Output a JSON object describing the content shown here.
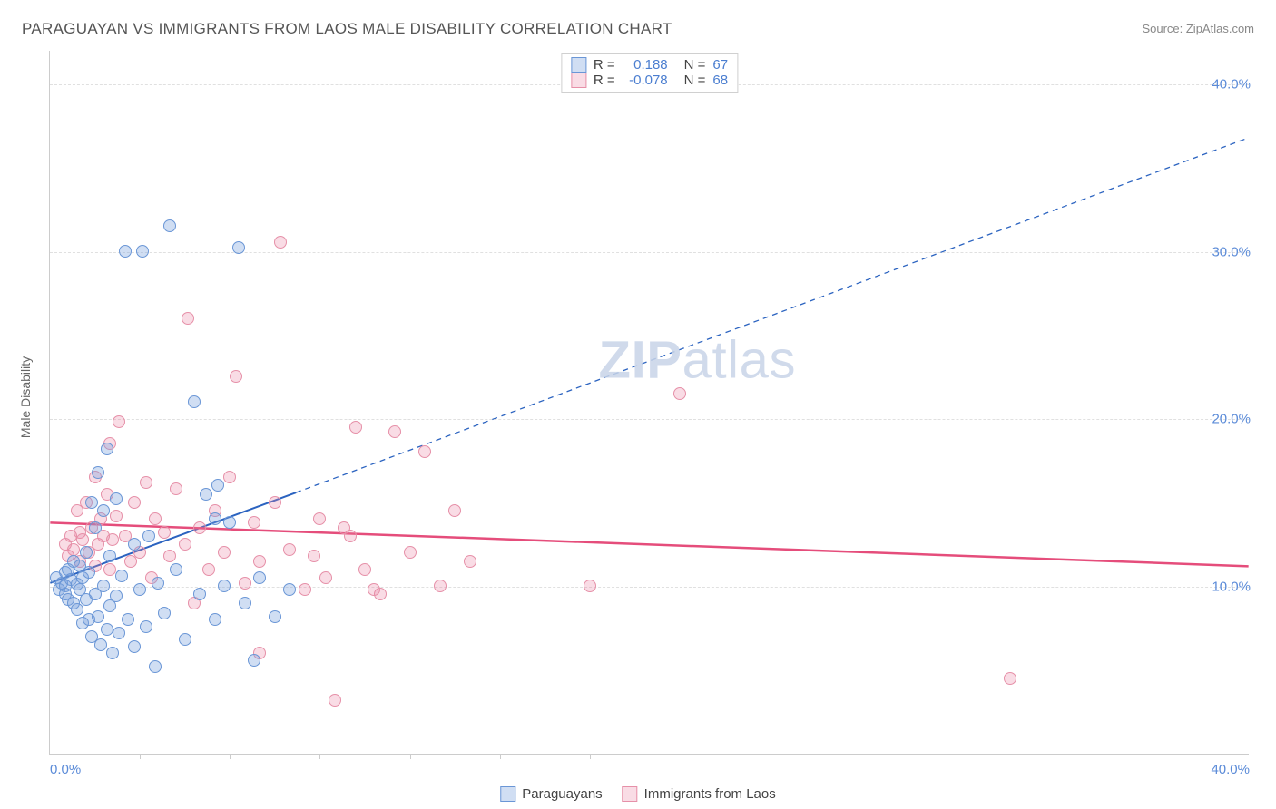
{
  "title": "PARAGUAYAN VS IMMIGRANTS FROM LAOS MALE DISABILITY CORRELATION CHART",
  "source": "Source: ZipAtlas.com",
  "ylabel": "Male Disability",
  "watermark_a": "ZIP",
  "watermark_b": "atlas",
  "chart": {
    "type": "scatter",
    "background_color": "#ffffff",
    "grid_color": "#e0e0e0",
    "axis_color": "#cccccc",
    "xlim": [
      0,
      40
    ],
    "ylim": [
      0,
      42
    ],
    "xtick_labels": [
      "0.0%",
      "40.0%"
    ],
    "xtick_pos": [
      0,
      40
    ],
    "ytick_labels": [
      "10.0%",
      "20.0%",
      "30.0%",
      "40.0%"
    ],
    "ytick_pos": [
      10,
      20,
      30,
      40
    ],
    "x_minor_ticks": [
      3,
      6,
      9,
      12,
      15,
      18
    ],
    "marker_radius": 7,
    "series_a": {
      "name": "Paraguayans",
      "color_fill": "rgba(120,160,220,0.35)",
      "color_stroke": "#6a96d6",
      "line_color": "#2b63c0",
      "line_width": 2,
      "R": "0.188",
      "N": "67",
      "regression": {
        "x1": 0,
        "y1": 10.2,
        "x2": 8.2,
        "y2": 15.6,
        "ext_x": 40,
        "ext_y": 36.8
      },
      "points": [
        [
          0.2,
          10.5
        ],
        [
          0.3,
          9.8
        ],
        [
          0.4,
          10.2
        ],
        [
          0.5,
          10.0
        ],
        [
          0.5,
          9.5
        ],
        [
          0.5,
          10.8
        ],
        [
          0.6,
          9.2
        ],
        [
          0.6,
          11.0
        ],
        [
          0.7,
          10.4
        ],
        [
          0.8,
          9.0
        ],
        [
          0.8,
          11.5
        ],
        [
          0.9,
          10.1
        ],
        [
          0.9,
          8.6
        ],
        [
          1.0,
          9.8
        ],
        [
          1.0,
          11.2
        ],
        [
          1.1,
          10.5
        ],
        [
          1.1,
          7.8
        ],
        [
          1.2,
          9.2
        ],
        [
          1.2,
          12.0
        ],
        [
          1.3,
          8.0
        ],
        [
          1.3,
          10.8
        ],
        [
          1.4,
          15.0
        ],
        [
          1.4,
          7.0
        ],
        [
          1.5,
          9.5
        ],
        [
          1.5,
          13.5
        ],
        [
          1.6,
          8.2
        ],
        [
          1.6,
          16.8
        ],
        [
          1.7,
          6.5
        ],
        [
          1.8,
          10.0
        ],
        [
          1.8,
          14.5
        ],
        [
          1.9,
          7.4
        ],
        [
          1.9,
          18.2
        ],
        [
          2.0,
          11.8
        ],
        [
          2.0,
          8.8
        ],
        [
          2.1,
          6.0
        ],
        [
          2.2,
          9.4
        ],
        [
          2.2,
          15.2
        ],
        [
          2.3,
          7.2
        ],
        [
          2.4,
          10.6
        ],
        [
          2.5,
          30.0
        ],
        [
          2.6,
          8.0
        ],
        [
          2.8,
          12.5
        ],
        [
          2.8,
          6.4
        ],
        [
          3.0,
          9.8
        ],
        [
          3.1,
          30.0
        ],
        [
          3.2,
          7.6
        ],
        [
          3.3,
          13.0
        ],
        [
          3.5,
          5.2
        ],
        [
          3.6,
          10.2
        ],
        [
          3.8,
          8.4
        ],
        [
          4.0,
          31.5
        ],
        [
          4.2,
          11.0
        ],
        [
          4.5,
          6.8
        ],
        [
          4.8,
          21.0
        ],
        [
          5.0,
          9.5
        ],
        [
          5.2,
          15.5
        ],
        [
          5.5,
          8.0
        ],
        [
          5.5,
          14.0
        ],
        [
          5.6,
          16.0
        ],
        [
          5.8,
          10.0
        ],
        [
          6.0,
          13.8
        ],
        [
          6.3,
          30.2
        ],
        [
          6.5,
          9.0
        ],
        [
          6.8,
          5.6
        ],
        [
          7.0,
          10.5
        ],
        [
          7.5,
          8.2
        ],
        [
          8.0,
          9.8
        ]
      ]
    },
    "series_b": {
      "name": "Immigrants from Laos",
      "color_fill": "rgba(235,130,160,0.28)",
      "color_stroke": "#e690a8",
      "line_color": "#e54d7b",
      "line_width": 2.5,
      "R": "-0.078",
      "N": "68",
      "regression": {
        "x1": 0,
        "y1": 13.8,
        "x2": 40,
        "y2": 11.2
      },
      "points": [
        [
          0.5,
          12.5
        ],
        [
          0.6,
          11.8
        ],
        [
          0.7,
          13.0
        ],
        [
          0.8,
          12.2
        ],
        [
          0.9,
          14.5
        ],
        [
          1.0,
          11.5
        ],
        [
          1.0,
          13.2
        ],
        [
          1.1,
          12.8
        ],
        [
          1.2,
          15.0
        ],
        [
          1.3,
          12.0
        ],
        [
          1.4,
          13.5
        ],
        [
          1.5,
          11.2
        ],
        [
          1.5,
          16.5
        ],
        [
          1.6,
          12.5
        ],
        [
          1.7,
          14.0
        ],
        [
          1.8,
          13.0
        ],
        [
          1.9,
          15.5
        ],
        [
          2.0,
          11.0
        ],
        [
          2.0,
          18.5
        ],
        [
          2.1,
          12.8
        ],
        [
          2.2,
          14.2
        ],
        [
          2.3,
          19.8
        ],
        [
          2.5,
          13.0
        ],
        [
          2.7,
          11.5
        ],
        [
          2.8,
          15.0
        ],
        [
          3.0,
          12.0
        ],
        [
          3.2,
          16.2
        ],
        [
          3.4,
          10.5
        ],
        [
          3.5,
          14.0
        ],
        [
          3.8,
          13.2
        ],
        [
          4.0,
          11.8
        ],
        [
          4.2,
          15.8
        ],
        [
          4.5,
          12.5
        ],
        [
          4.6,
          26.0
        ],
        [
          4.8,
          9.0
        ],
        [
          5.0,
          13.5
        ],
        [
          5.3,
          11.0
        ],
        [
          5.5,
          14.5
        ],
        [
          5.8,
          12.0
        ],
        [
          6.0,
          16.5
        ],
        [
          6.2,
          22.5
        ],
        [
          6.5,
          10.2
        ],
        [
          6.8,
          13.8
        ],
        [
          7.0,
          11.5
        ],
        [
          7.0,
          6.0
        ],
        [
          7.5,
          15.0
        ],
        [
          7.7,
          30.5
        ],
        [
          8.0,
          12.2
        ],
        [
          8.5,
          9.8
        ],
        [
          9.0,
          14.0
        ],
        [
          9.2,
          10.5
        ],
        [
          9.5,
          3.2
        ],
        [
          10.0,
          13.0
        ],
        [
          10.2,
          19.5
        ],
        [
          10.5,
          11.0
        ],
        [
          11.0,
          9.5
        ],
        [
          11.5,
          19.2
        ],
        [
          12.0,
          12.0
        ],
        [
          12.5,
          18.0
        ],
        [
          13.0,
          10.0
        ],
        [
          13.5,
          14.5
        ],
        [
          14.0,
          11.5
        ],
        [
          18.0,
          10.0
        ],
        [
          21.0,
          21.5
        ],
        [
          32.0,
          4.5
        ],
        [
          10.8,
          9.8
        ],
        [
          9.8,
          13.5
        ],
        [
          8.8,
          11.8
        ]
      ]
    }
  },
  "legend_top": {
    "r_label": "R =",
    "n_label": "N ="
  },
  "colors": {
    "tick_text": "#5b8bd8"
  }
}
